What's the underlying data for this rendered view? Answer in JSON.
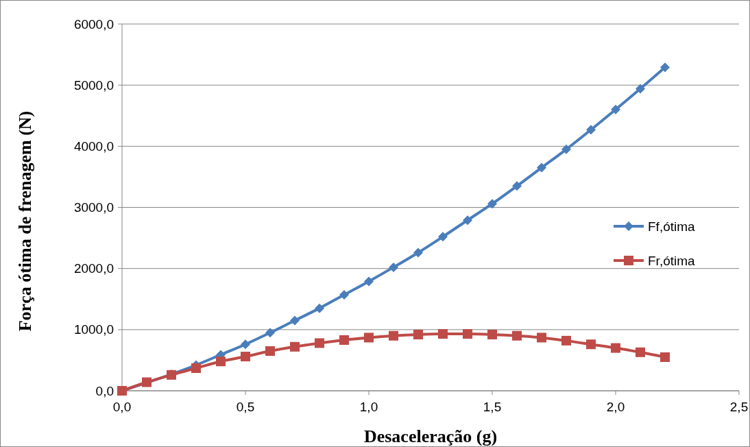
{
  "chart_data": {
    "type": "line",
    "xlabel": "Desaceleração (g)",
    "ylabel": "Força ótima de frenagem (N)",
    "x": [
      0,
      0.1,
      0.2,
      0.3,
      0.4,
      0.5,
      0.6,
      0.7,
      0.8,
      0.9,
      1.0,
      1.1,
      1.2,
      1.3,
      1.4,
      1.5,
      1.6,
      1.7,
      1.8,
      1.9,
      2.0,
      2.1,
      2.2
    ],
    "series": [
      {
        "name": "Ff,ótima",
        "color": "#4a7ebb",
        "marker": "diamond",
        "values": [
          0,
          null,
          270,
          420,
          590,
          760,
          950,
          1150,
          1350,
          1570,
          1790,
          2020,
          2260,
          2520,
          2790,
          3060,
          3350,
          3650,
          3950,
          4270,
          4600,
          4940,
          5290
        ]
      },
      {
        "name": "Fr,ótima",
        "color": "#be4b48",
        "marker": "square",
        "values": [
          0,
          140,
          260,
          370,
          480,
          560,
          650,
          720,
          780,
          830,
          870,
          900,
          920,
          930,
          930,
          920,
          900,
          870,
          820,
          760,
          700,
          630,
          550
        ]
      }
    ],
    "xlim": [
      0,
      2.5
    ],
    "xticks": [
      {
        "value": 0,
        "label": "0,0"
      },
      {
        "value": 0.5,
        "label": "0,5"
      },
      {
        "value": 1,
        "label": "1,0"
      },
      {
        "value": 1.5,
        "label": "1,5"
      },
      {
        "value": 2,
        "label": "2,0"
      },
      {
        "value": 2.5,
        "label": "2,5"
      }
    ],
    "ylim": [
      0,
      6000
    ],
    "yticks": [
      {
        "value": 0,
        "label": "0,0"
      },
      {
        "value": 1000,
        "label": "1000,0"
      },
      {
        "value": 2000,
        "label": "2000,0"
      },
      {
        "value": 3000,
        "label": "3000,0"
      },
      {
        "value": 4000,
        "label": "4000,0"
      },
      {
        "value": 5000,
        "label": "5000,0"
      },
      {
        "value": 6000,
        "label": "6000,0"
      }
    ],
    "grid": "y",
    "legend": "right",
    "line_style": "solid"
  }
}
